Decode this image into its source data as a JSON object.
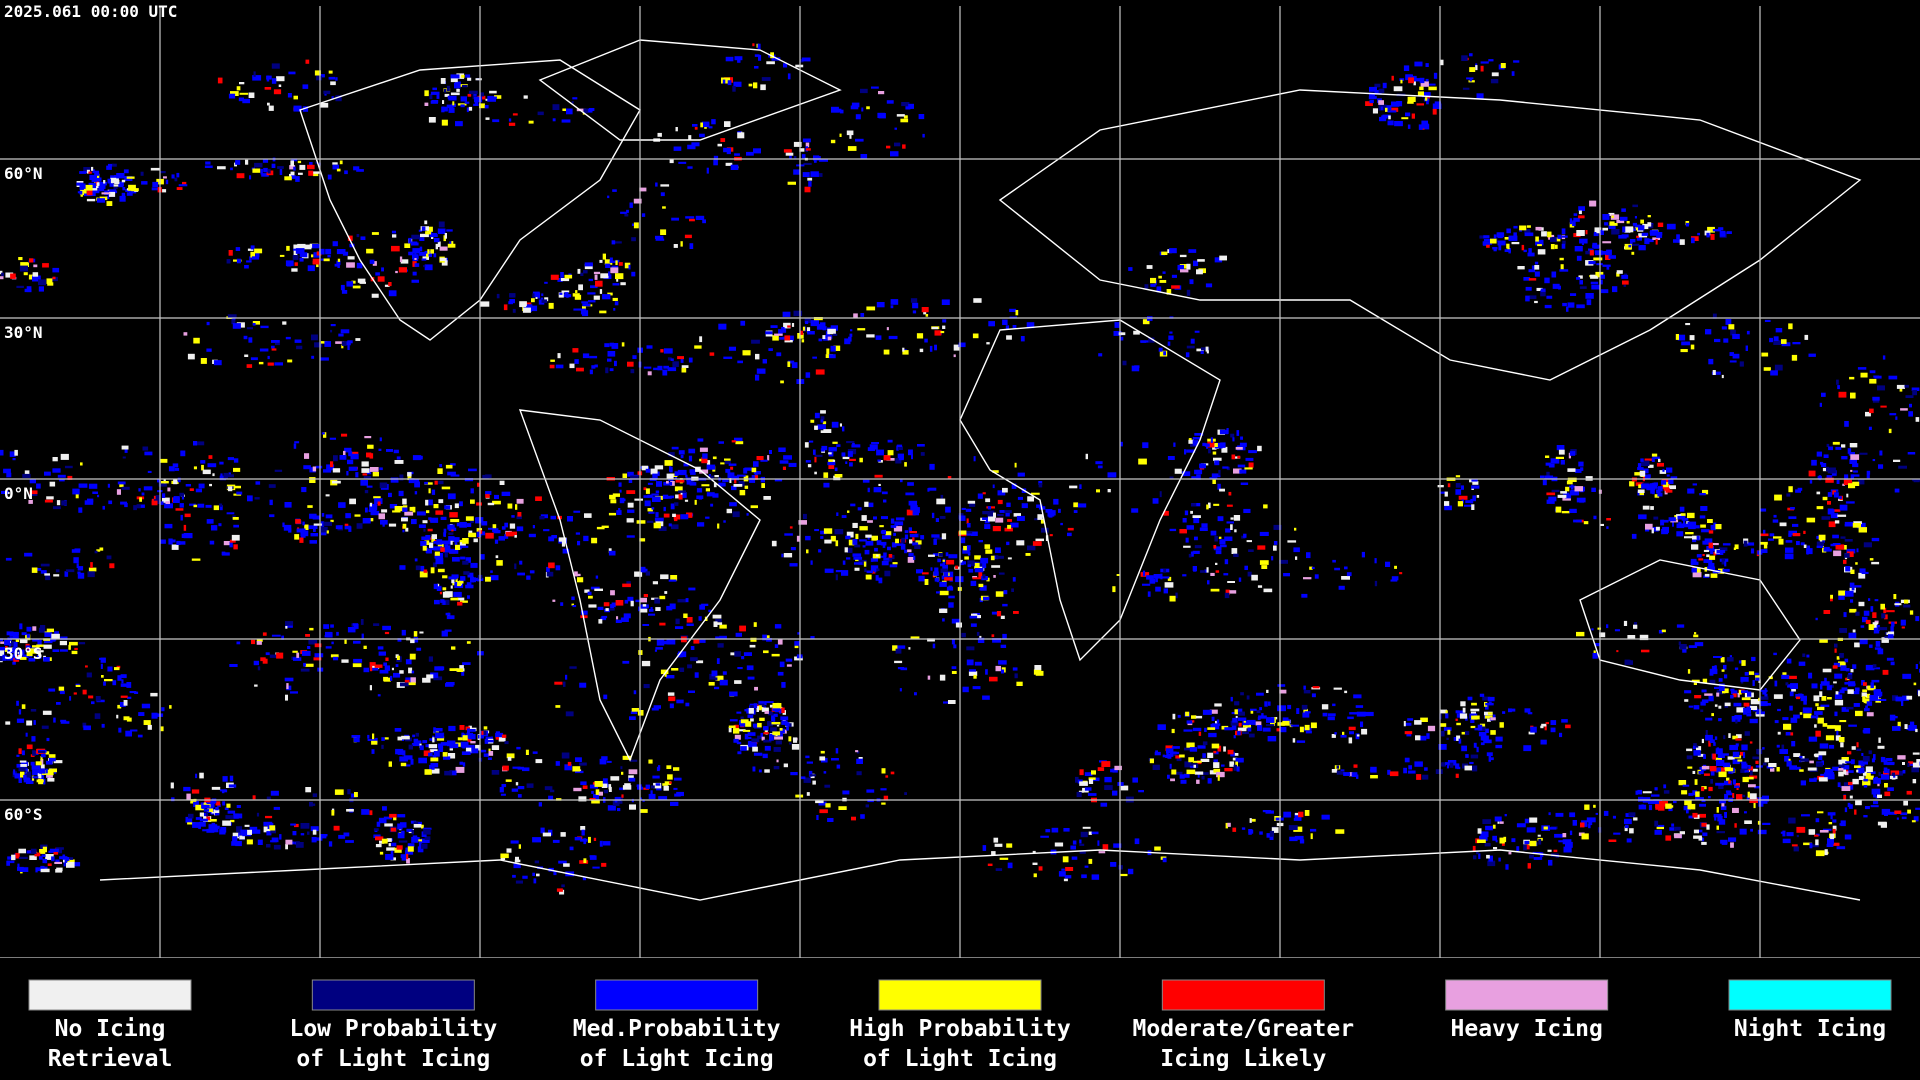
{
  "header": {
    "timestamp": "2025.061 00:00 UTC"
  },
  "map": {
    "latitude_labels": [
      "60°N",
      "30°N",
      "0°N",
      "30°S",
      "60°S"
    ]
  },
  "legend": {
    "items": [
      {
        "label_lines": [
          "No Icing",
          "Retrieval"
        ],
        "color": "#f0f0f0"
      },
      {
        "label_lines": [
          "Low Probability",
          "of Light Icing"
        ],
        "color": "#000080"
      },
      {
        "label_lines": [
          "Med.Probability",
          "of Light Icing"
        ],
        "color": "#0000ff"
      },
      {
        "label_lines": [
          "High Probability",
          "of Light Icing"
        ],
        "color": "#ffff00"
      },
      {
        "label_lines": [
          "Moderate/Greater",
          "Icing Likely"
        ],
        "color": "#ff0000"
      },
      {
        "label_lines": [
          "Heavy Icing"
        ],
        "color": "#e8a0e0"
      },
      {
        "label_lines": [
          "Night Icing"
        ],
        "color": "#00ffff"
      }
    ]
  }
}
